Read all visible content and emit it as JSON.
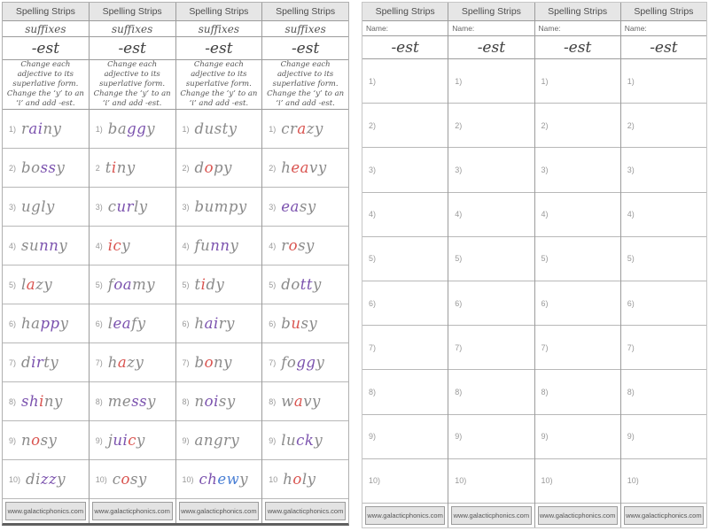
{
  "colors": {
    "grey": "#8a8a8a",
    "purple": "#7b52ae",
    "red": "#d9534f",
    "blue": "#4a7fd4"
  },
  "left_page": {
    "header": "Spelling Strips",
    "subheader": "suffixes",
    "suffix": "-est",
    "instructions": "Change each adjective to its superlative form. Change the ‘y’ to an ‘i’ and add -est.",
    "footer": "www.galacticphonics.com",
    "strips": [
      {
        "items": [
          {
            "num": "1)",
            "word": [
              [
                "r",
                "grey"
              ],
              [
                "ai",
                "purple"
              ],
              [
                "ny",
                "grey"
              ]
            ]
          },
          {
            "num": "2)",
            "word": [
              [
                "bo",
                "grey"
              ],
              [
                "ss",
                "purple"
              ],
              [
                "y",
                "grey"
              ]
            ]
          },
          {
            "num": "3)",
            "word": [
              [
                "ugly",
                "grey"
              ]
            ]
          },
          {
            "num": "4)",
            "word": [
              [
                "su",
                "grey"
              ],
              [
                "nn",
                "purple"
              ],
              [
                "y",
                "grey"
              ]
            ]
          },
          {
            "num": "5)",
            "word": [
              [
                "l",
                "grey"
              ],
              [
                "a",
                "red"
              ],
              [
                "zy",
                "grey"
              ]
            ]
          },
          {
            "num": "6)",
            "word": [
              [
                "ha",
                "grey"
              ],
              [
                "pp",
                "purple"
              ],
              [
                "y",
                "grey"
              ]
            ]
          },
          {
            "num": "7)",
            "word": [
              [
                "d",
                "grey"
              ],
              [
                "ir",
                "purple"
              ],
              [
                "ty",
                "grey"
              ]
            ]
          },
          {
            "num": "8)",
            "word": [
              [
                "sh",
                "purple"
              ],
              [
                "i",
                "red"
              ],
              [
                "ny",
                "grey"
              ]
            ]
          },
          {
            "num": "9)",
            "word": [
              [
                "n",
                "grey"
              ],
              [
                "o",
                "red"
              ],
              [
                "sy",
                "grey"
              ]
            ]
          },
          {
            "num": "10)",
            "word": [
              [
                "di",
                "grey"
              ],
              [
                "zz",
                "purple"
              ],
              [
                "y",
                "grey"
              ]
            ]
          }
        ]
      },
      {
        "items": [
          {
            "num": "1)",
            "word": [
              [
                "ba",
                "grey"
              ],
              [
                "gg",
                "purple"
              ],
              [
                "y",
                "grey"
              ]
            ]
          },
          {
            "num": "2",
            "word": [
              [
                "t",
                "grey"
              ],
              [
                "i",
                "red"
              ],
              [
                "ny",
                "grey"
              ]
            ]
          },
          {
            "num": "3)",
            "word": [
              [
                "c",
                "grey"
              ],
              [
                "ur",
                "purple"
              ],
              [
                "ly",
                "grey"
              ]
            ]
          },
          {
            "num": "4)",
            "word": [
              [
                "ic",
                "red"
              ],
              [
                "y",
                "grey"
              ]
            ]
          },
          {
            "num": "5)",
            "word": [
              [
                "f",
                "grey"
              ],
              [
                "oa",
                "purple"
              ],
              [
                "my",
                "grey"
              ]
            ]
          },
          {
            "num": "6)",
            "word": [
              [
                "l",
                "grey"
              ],
              [
                "ea",
                "purple"
              ],
              [
                "fy",
                "grey"
              ]
            ]
          },
          {
            "num": "7)",
            "word": [
              [
                "h",
                "grey"
              ],
              [
                "a",
                "red"
              ],
              [
                "zy",
                "grey"
              ]
            ]
          },
          {
            "num": "8)",
            "word": [
              [
                "me",
                "grey"
              ],
              [
                "ss",
                "purple"
              ],
              [
                "y",
                "grey"
              ]
            ]
          },
          {
            "num": "9)",
            "word": [
              [
                "j",
                "grey"
              ],
              [
                "ui",
                "purple"
              ],
              [
                "c",
                "red"
              ],
              [
                "y",
                "grey"
              ]
            ]
          },
          {
            "num": "10)",
            "word": [
              [
                "c",
                "grey"
              ],
              [
                "o",
                "red"
              ],
              [
                "sy",
                "grey"
              ]
            ]
          }
        ]
      },
      {
        "items": [
          {
            "num": "1)",
            "word": [
              [
                "dusty",
                "grey"
              ]
            ]
          },
          {
            "num": "2)",
            "word": [
              [
                "d",
                "grey"
              ],
              [
                "o",
                "red"
              ],
              [
                "py",
                "grey"
              ]
            ]
          },
          {
            "num": "3)",
            "word": [
              [
                "bumpy",
                "grey"
              ]
            ]
          },
          {
            "num": "4)",
            "word": [
              [
                "fu",
                "grey"
              ],
              [
                "nn",
                "purple"
              ],
              [
                "y",
                "grey"
              ]
            ]
          },
          {
            "num": "5)",
            "word": [
              [
                "t",
                "grey"
              ],
              [
                "i",
                "red"
              ],
              [
                "dy",
                "grey"
              ]
            ]
          },
          {
            "num": "6)",
            "word": [
              [
                "h",
                "grey"
              ],
              [
                "ai",
                "purple"
              ],
              [
                "ry",
                "grey"
              ]
            ]
          },
          {
            "num": "7)",
            "word": [
              [
                "b",
                "grey"
              ],
              [
                "o",
                "red"
              ],
              [
                "ny",
                "grey"
              ]
            ]
          },
          {
            "num": "8)",
            "word": [
              [
                "n",
                "grey"
              ],
              [
                "oi",
                "purple"
              ],
              [
                "sy",
                "grey"
              ]
            ]
          },
          {
            "num": "9)",
            "word": [
              [
                "angry",
                "grey"
              ]
            ]
          },
          {
            "num": "10)",
            "word": [
              [
                "ch",
                "purple"
              ],
              [
                "ew",
                "blue"
              ],
              [
                "y",
                "grey"
              ]
            ]
          }
        ]
      },
      {
        "items": [
          {
            "num": "1)",
            "word": [
              [
                "cr",
                "grey"
              ],
              [
                "a",
                "red"
              ],
              [
                "zy",
                "grey"
              ]
            ]
          },
          {
            "num": "2)",
            "word": [
              [
                "h",
                "grey"
              ],
              [
                "ea",
                "red"
              ],
              [
                "vy",
                "grey"
              ]
            ]
          },
          {
            "num": "3)",
            "word": [
              [
                "ea",
                "purple"
              ],
              [
                "sy",
                "grey"
              ]
            ]
          },
          {
            "num": "4)",
            "word": [
              [
                "r",
                "grey"
              ],
              [
                "o",
                "red"
              ],
              [
                "sy",
                "grey"
              ]
            ]
          },
          {
            "num": "5)",
            "word": [
              [
                "do",
                "grey"
              ],
              [
                "tt",
                "purple"
              ],
              [
                "y",
                "grey"
              ]
            ]
          },
          {
            "num": "6)",
            "word": [
              [
                "b",
                "grey"
              ],
              [
                "u",
                "red"
              ],
              [
                "sy",
                "grey"
              ]
            ]
          },
          {
            "num": "7)",
            "word": [
              [
                "fo",
                "grey"
              ],
              [
                "gg",
                "purple"
              ],
              [
                "y",
                "grey"
              ]
            ]
          },
          {
            "num": "8)",
            "word": [
              [
                "w",
                "grey"
              ],
              [
                "a",
                "red"
              ],
              [
                "vy",
                "grey"
              ]
            ]
          },
          {
            "num": "9)",
            "word": [
              [
                "lu",
                "grey"
              ],
              [
                "ck",
                "purple"
              ],
              [
                "y",
                "grey"
              ]
            ]
          },
          {
            "num": "10",
            "word": [
              [
                "h",
                "grey"
              ],
              [
                "o",
                "red"
              ],
              [
                "ly",
                "grey"
              ]
            ]
          }
        ]
      }
    ]
  },
  "right_page": {
    "header": "Spelling Strips",
    "name_label": "Name:",
    "suffix": "-est",
    "footer": "www.galacticphonics.com",
    "strip_count": 4,
    "item_numbers": [
      "1)",
      "2)",
      "3)",
      "4)",
      "5)",
      "6)",
      "7)",
      "8)",
      "9)",
      "10)"
    ]
  }
}
